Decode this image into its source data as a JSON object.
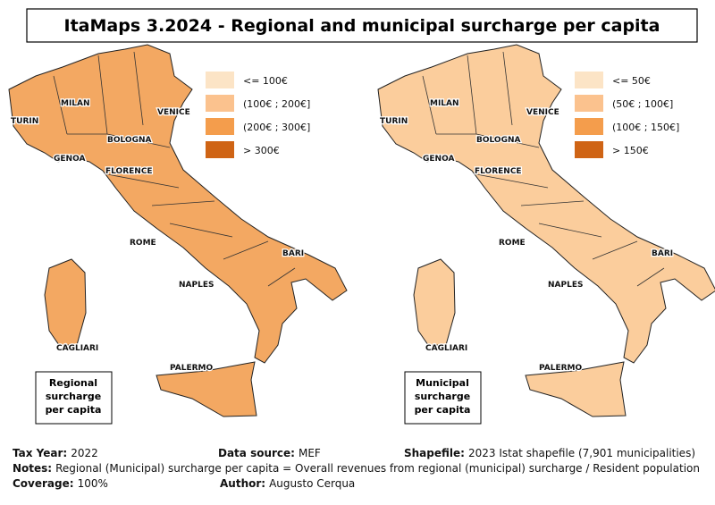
{
  "title": "ItaMaps 3.2024 - Regional and municipal surcharge per capita",
  "maps": [
    {
      "legend": [
        {
          "label": "<= 100€",
          "color": "#fce4c6"
        },
        {
          "label": "(100€ ; 200€]",
          "color": "#fbc28e"
        },
        {
          "label": "(200€ ; 300€]",
          "color": "#f49d4c"
        },
        {
          "label": "> 300€",
          "color": "#cf6415"
        }
      ],
      "fill": "#f3a862",
      "box_label": [
        "Regional",
        "surcharge",
        "per capita"
      ],
      "cities": [
        "TURIN",
        "MILAN",
        "VENICE",
        "BOLOGNA",
        "GENOA",
        "FLORENCE",
        "ROME",
        "BARI",
        "NAPLES",
        "CAGLIARI",
        "PALERMO"
      ]
    },
    {
      "legend": [
        {
          "label": "<= 50€",
          "color": "#fce4c6"
        },
        {
          "label": "(50€ ; 100€]",
          "color": "#fbc28e"
        },
        {
          "label": "(100€ ; 150€]",
          "color": "#f49d4c"
        },
        {
          "label": "> 150€",
          "color": "#cf6415"
        }
      ],
      "fill": "#fbcd9c",
      "box_label": [
        "Municipal",
        "surcharge",
        "per capita"
      ],
      "cities": [
        "TURIN",
        "MILAN",
        "VENICE",
        "BOLOGNA",
        "GENOA",
        "FLORENCE",
        "ROME",
        "BARI",
        "NAPLES",
        "CAGLIARI",
        "PALERMO"
      ]
    }
  ],
  "footer": [
    [
      {
        "label": "Tax Year:",
        "value": "2022"
      },
      {
        "label": "Data source:",
        "value": "MEF"
      },
      {
        "label": "Shapefile:",
        "value": "2023 Istat shapefile (7,901 municipalities)"
      }
    ],
    [
      {
        "label": "Notes:",
        "value": "Regional (Municipal) surcharge per capita = Overall revenues from regional (municipal) surcharge / Resident population"
      }
    ],
    [
      {
        "label": "Coverage:",
        "value": "100%"
      },
      {
        "label": "Author:",
        "value": "Augusto Cerqua"
      }
    ]
  ]
}
